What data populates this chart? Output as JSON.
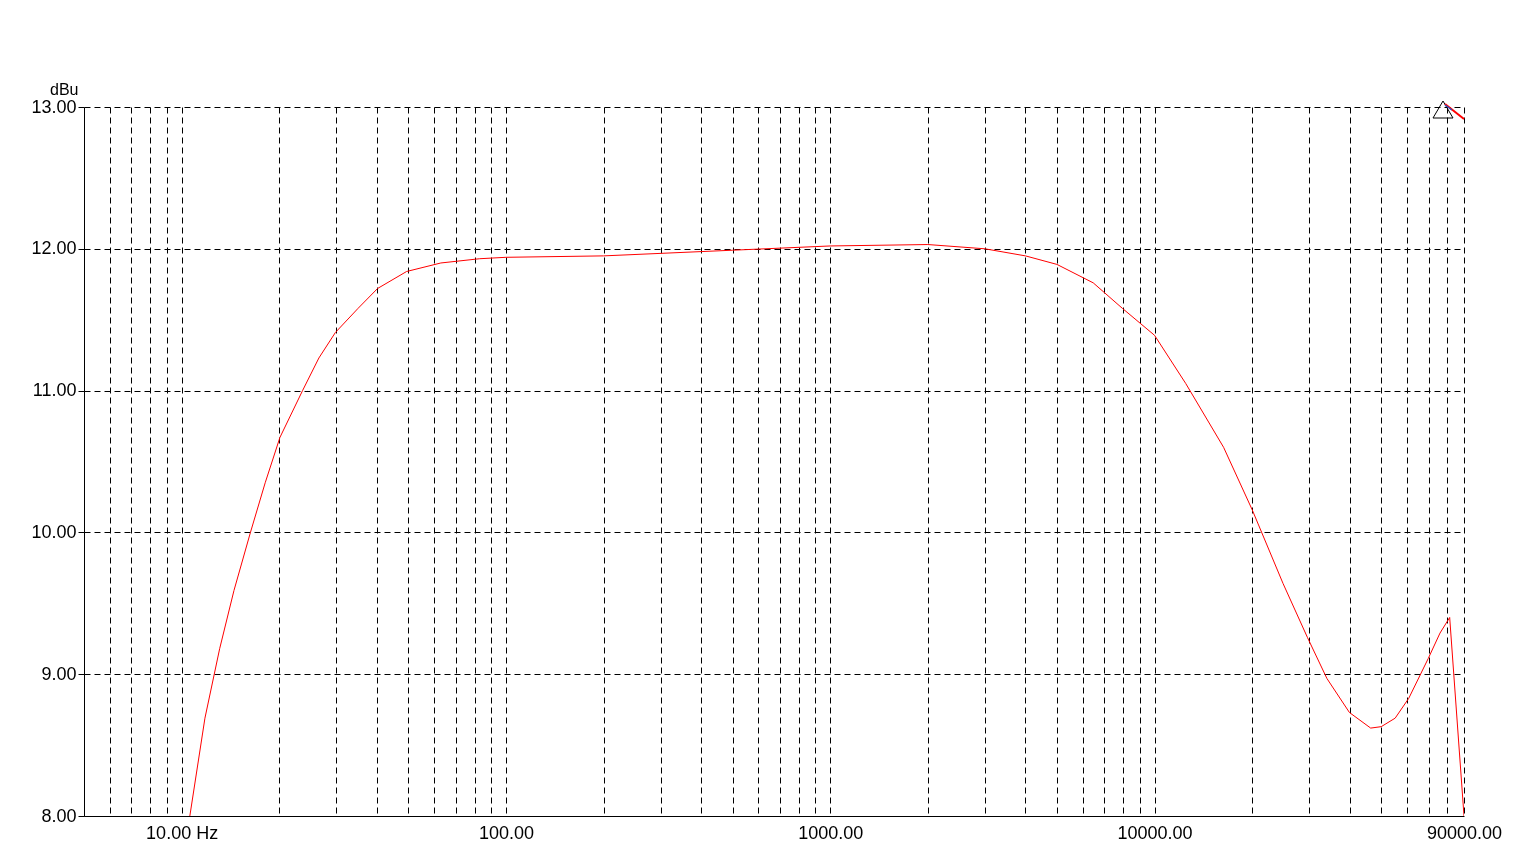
{
  "chart_data": {
    "type": "line",
    "ylabel": "dBu",
    "log": "x",
    "grid": true,
    "line_style": "solid",
    "marker": "none",
    "xlim": [
      5,
      90000
    ],
    "ylim": [
      8,
      13
    ],
    "xticks": [
      {
        "value": 6,
        "label": null
      },
      {
        "value": 7,
        "label": null
      },
      {
        "value": 8,
        "label": null
      },
      {
        "value": 9,
        "label": null
      },
      {
        "value": 10,
        "label": "10.00 Hz"
      },
      {
        "value": 20,
        "label": null
      },
      {
        "value": 30,
        "label": null
      },
      {
        "value": 40,
        "label": null
      },
      {
        "value": 50,
        "label": null
      },
      {
        "value": 60,
        "label": null
      },
      {
        "value": 70,
        "label": null
      },
      {
        "value": 80,
        "label": null
      },
      {
        "value": 90,
        "label": null
      },
      {
        "value": 100,
        "label": "100.00"
      },
      {
        "value": 200,
        "label": null
      },
      {
        "value": 300,
        "label": null
      },
      {
        "value": 400,
        "label": null
      },
      {
        "value": 500,
        "label": null
      },
      {
        "value": 600,
        "label": null
      },
      {
        "value": 700,
        "label": null
      },
      {
        "value": 800,
        "label": null
      },
      {
        "value": 900,
        "label": null
      },
      {
        "value": 1000,
        "label": "1000.00"
      },
      {
        "value": 2000,
        "label": null
      },
      {
        "value": 3000,
        "label": null
      },
      {
        "value": 4000,
        "label": null
      },
      {
        "value": 5000,
        "label": null
      },
      {
        "value": 6000,
        "label": null
      },
      {
        "value": 7000,
        "label": null
      },
      {
        "value": 8000,
        "label": null
      },
      {
        "value": 9000,
        "label": null
      },
      {
        "value": 10000,
        "label": "10000.00"
      },
      {
        "value": 20000,
        "label": null
      },
      {
        "value": 30000,
        "label": null
      },
      {
        "value": 40000,
        "label": null
      },
      {
        "value": 50000,
        "label": null
      },
      {
        "value": 60000,
        "label": null
      },
      {
        "value": 70000,
        "label": null
      },
      {
        "value": 80000,
        "label": null
      },
      {
        "value": 90000,
        "label": "90000.00"
      }
    ],
    "yticks": [
      {
        "value": 8,
        "label": "8.00"
      },
      {
        "value": 9,
        "label": "9.00"
      },
      {
        "value": 10,
        "label": "10.00"
      },
      {
        "value": 11,
        "label": "11.00"
      },
      {
        "value": 12,
        "label": "12.00"
      },
      {
        "value": 13,
        "label": "13.00"
      }
    ],
    "x": [
      10.6,
      11.8,
      13.1,
      14.5,
      16.3,
      18.1,
      20.1,
      23.6,
      26.5,
      29.8,
      35,
      40.2,
      49.4,
      63,
      83,
      100,
      200,
      500,
      1000,
      2000,
      3000,
      4000,
      5000,
      6470,
      7960,
      10000,
      12480,
      16330,
      20000,
      24900,
      29600,
      34000,
      39900,
      46400,
      50000,
      55200,
      60800,
      69800,
      75900,
      81300,
      90000
    ],
    "series": [
      {
        "color": "#ff0000",
        "values": [
          8.0,
          8.69,
          9.18,
          9.59,
          10.0,
          10.35,
          10.67,
          11.0,
          11.23,
          11.41,
          11.58,
          11.72,
          11.84,
          11.9,
          11.93,
          11.94,
          11.95,
          11.99,
          12.02,
          12.03,
          12.0,
          11.95,
          11.89,
          11.76,
          11.58,
          11.39,
          11.05,
          10.6,
          10.16,
          9.64,
          9.26,
          8.97,
          8.73,
          8.62,
          8.63,
          8.69,
          8.83,
          9.11,
          9.29,
          9.4,
          8.0
        ]
      }
    ]
  }
}
